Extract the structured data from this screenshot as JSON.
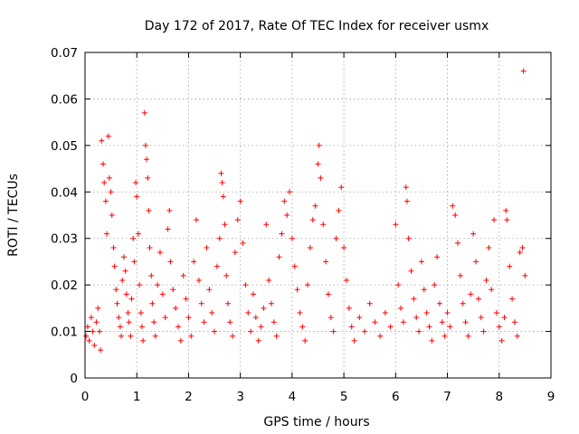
{
  "chart_data": {
    "type": "scatter",
    "title": "Day 172 of 2017, Rate Of TEC Index for receiver usmx",
    "xlabel": "GPS time / hours",
    "ylabel": "ROTI / TECUs",
    "xlim": [
      0,
      9
    ],
    "ylim": [
      0,
      0.07
    ],
    "xticks": [
      "0",
      "1",
      "2",
      "3",
      "4",
      "5",
      "6",
      "7",
      "8",
      "9"
    ],
    "yticks": [
      "0",
      "0.01",
      "0.02",
      "0.03",
      "0.04",
      "0.05",
      "0.06",
      "0.07"
    ],
    "grid": true,
    "marker": "+",
    "color": "#ff0000",
    "series": [
      {
        "name": "ROTI",
        "points": [
          [
            0.02,
            0.009
          ],
          [
            0.05,
            0.011
          ],
          [
            0.08,
            0.008
          ],
          [
            0.12,
            0.013
          ],
          [
            0.15,
            0.01
          ],
          [
            0.18,
            0.007
          ],
          [
            0.22,
            0.012
          ],
          [
            0.25,
            0.015
          ],
          [
            0.28,
            0.01
          ],
          [
            0.3,
            0.006
          ],
          [
            0.32,
            0.051
          ],
          [
            0.35,
            0.046
          ],
          [
            0.37,
            0.042
          ],
          [
            0.4,
            0.038
          ],
          [
            0.42,
            0.031
          ],
          [
            0.45,
            0.052
          ],
          [
            0.47,
            0.043
          ],
          [
            0.5,
            0.04
          ],
          [
            0.52,
            0.035
          ],
          [
            0.55,
            0.028
          ],
          [
            0.57,
            0.024
          ],
          [
            0.6,
            0.019
          ],
          [
            0.62,
            0.016
          ],
          [
            0.65,
            0.013
          ],
          [
            0.68,
            0.011
          ],
          [
            0.7,
            0.009
          ],
          [
            0.72,
            0.021
          ],
          [
            0.75,
            0.026
          ],
          [
            0.78,
            0.023
          ],
          [
            0.8,
            0.018
          ],
          [
            0.83,
            0.014
          ],
          [
            0.85,
            0.012
          ],
          [
            0.88,
            0.009
          ],
          [
            0.9,
            0.017
          ],
          [
            0.93,
            0.03
          ],
          [
            0.95,
            0.025
          ],
          [
            0.98,
            0.042
          ],
          [
            1.0,
            0.039
          ],
          [
            1.03,
            0.031
          ],
          [
            1.05,
            0.02
          ],
          [
            1.08,
            0.014
          ],
          [
            1.1,
            0.011
          ],
          [
            1.12,
            0.008
          ],
          [
            1.15,
            0.057
          ],
          [
            1.17,
            0.05
          ],
          [
            1.19,
            0.047
          ],
          [
            1.21,
            0.043
          ],
          [
            1.23,
            0.036
          ],
          [
            1.25,
            0.028
          ],
          [
            1.28,
            0.022
          ],
          [
            1.3,
            0.016
          ],
          [
            1.33,
            0.012
          ],
          [
            1.36,
            0.009
          ],
          [
            1.4,
            0.02
          ],
          [
            1.45,
            0.027
          ],
          [
            1.5,
            0.018
          ],
          [
            1.55,
            0.013
          ],
          [
            1.6,
            0.032
          ],
          [
            1.63,
            0.036
          ],
          [
            1.65,
            0.025
          ],
          [
            1.7,
            0.019
          ],
          [
            1.75,
            0.015
          ],
          [
            1.8,
            0.011
          ],
          [
            1.85,
            0.008
          ],
          [
            1.9,
            0.022
          ],
          [
            1.95,
            0.017
          ],
          [
            2.0,
            0.013
          ],
          [
            2.05,
            0.009
          ],
          [
            2.1,
            0.025
          ],
          [
            2.15,
            0.034
          ],
          [
            2.2,
            0.021
          ],
          [
            2.25,
            0.016
          ],
          [
            2.3,
            0.012
          ],
          [
            2.35,
            0.028
          ],
          [
            2.4,
            0.019
          ],
          [
            2.45,
            0.014
          ],
          [
            2.5,
            0.01
          ],
          [
            2.55,
            0.024
          ],
          [
            2.6,
            0.03
          ],
          [
            2.63,
            0.044
          ],
          [
            2.65,
            0.042
          ],
          [
            2.67,
            0.039
          ],
          [
            2.7,
            0.033
          ],
          [
            2.73,
            0.022
          ],
          [
            2.76,
            0.016
          ],
          [
            2.8,
            0.012
          ],
          [
            2.85,
            0.009
          ],
          [
            2.9,
            0.027
          ],
          [
            2.95,
            0.034
          ],
          [
            3.0,
            0.038
          ],
          [
            3.05,
            0.029
          ],
          [
            3.1,
            0.02
          ],
          [
            3.15,
            0.014
          ],
          [
            3.2,
            0.01
          ],
          [
            3.25,
            0.018
          ],
          [
            3.3,
            0.013
          ],
          [
            3.35,
            0.008
          ],
          [
            3.4,
            0.011
          ],
          [
            3.45,
            0.015
          ],
          [
            3.5,
            0.033
          ],
          [
            3.55,
            0.021
          ],
          [
            3.6,
            0.016
          ],
          [
            3.65,
            0.012
          ],
          [
            3.7,
            0.009
          ],
          [
            3.75,
            0.026
          ],
          [
            3.8,
            0.031
          ],
          [
            3.85,
            0.038
          ],
          [
            3.9,
            0.035
          ],
          [
            3.95,
            0.04
          ],
          [
            4.0,
            0.03
          ],
          [
            4.05,
            0.024
          ],
          [
            4.1,
            0.019
          ],
          [
            4.15,
            0.014
          ],
          [
            4.2,
            0.011
          ],
          [
            4.25,
            0.008
          ],
          [
            4.3,
            0.02
          ],
          [
            4.35,
            0.028
          ],
          [
            4.4,
            0.034
          ],
          [
            4.45,
            0.037
          ],
          [
            4.5,
            0.046
          ],
          [
            4.52,
            0.05
          ],
          [
            4.55,
            0.043
          ],
          [
            4.6,
            0.033
          ],
          [
            4.65,
            0.025
          ],
          [
            4.7,
            0.018
          ],
          [
            4.75,
            0.013
          ],
          [
            4.8,
            0.01
          ],
          [
            4.85,
            0.03
          ],
          [
            4.9,
            0.036
          ],
          [
            4.95,
            0.041
          ],
          [
            5.0,
            0.028
          ],
          [
            5.05,
            0.021
          ],
          [
            5.1,
            0.015
          ],
          [
            5.15,
            0.011
          ],
          [
            5.2,
            0.008
          ],
          [
            5.3,
            0.013
          ],
          [
            5.4,
            0.01
          ],
          [
            5.5,
            0.016
          ],
          [
            5.6,
            0.012
          ],
          [
            5.7,
            0.009
          ],
          [
            5.8,
            0.014
          ],
          [
            5.9,
            0.011
          ],
          [
            6.0,
            0.033
          ],
          [
            6.05,
            0.02
          ],
          [
            6.1,
            0.015
          ],
          [
            6.15,
            0.012
          ],
          [
            6.2,
            0.041
          ],
          [
            6.22,
            0.038
          ],
          [
            6.25,
            0.03
          ],
          [
            6.3,
            0.023
          ],
          [
            6.35,
            0.017
          ],
          [
            6.4,
            0.013
          ],
          [
            6.45,
            0.01
          ],
          [
            6.5,
            0.025
          ],
          [
            6.55,
            0.019
          ],
          [
            6.6,
            0.014
          ],
          [
            6.65,
            0.011
          ],
          [
            6.7,
            0.008
          ],
          [
            6.75,
            0.02
          ],
          [
            6.8,
            0.026
          ],
          [
            6.85,
            0.016
          ],
          [
            6.9,
            0.012
          ],
          [
            6.95,
            0.009
          ],
          [
            7.0,
            0.014
          ],
          [
            7.05,
            0.011
          ],
          [
            7.1,
            0.037
          ],
          [
            7.15,
            0.035
          ],
          [
            7.2,
            0.029
          ],
          [
            7.25,
            0.022
          ],
          [
            7.3,
            0.016
          ],
          [
            7.35,
            0.012
          ],
          [
            7.4,
            0.009
          ],
          [
            7.45,
            0.018
          ],
          [
            7.5,
            0.031
          ],
          [
            7.55,
            0.025
          ],
          [
            7.6,
            0.017
          ],
          [
            7.65,
            0.013
          ],
          [
            7.7,
            0.01
          ],
          [
            7.75,
            0.021
          ],
          [
            7.8,
            0.028
          ],
          [
            7.85,
            0.019
          ],
          [
            7.9,
            0.034
          ],
          [
            7.95,
            0.014
          ],
          [
            8.0,
            0.011
          ],
          [
            8.05,
            0.008
          ],
          [
            8.1,
            0.013
          ],
          [
            8.13,
            0.036
          ],
          [
            8.15,
            0.034
          ],
          [
            8.2,
            0.024
          ],
          [
            8.25,
            0.017
          ],
          [
            8.3,
            0.012
          ],
          [
            8.35,
            0.009
          ],
          [
            8.4,
            0.027
          ],
          [
            8.45,
            0.028
          ],
          [
            8.47,
            0.066
          ],
          [
            8.5,
            0.022
          ]
        ]
      }
    ]
  }
}
